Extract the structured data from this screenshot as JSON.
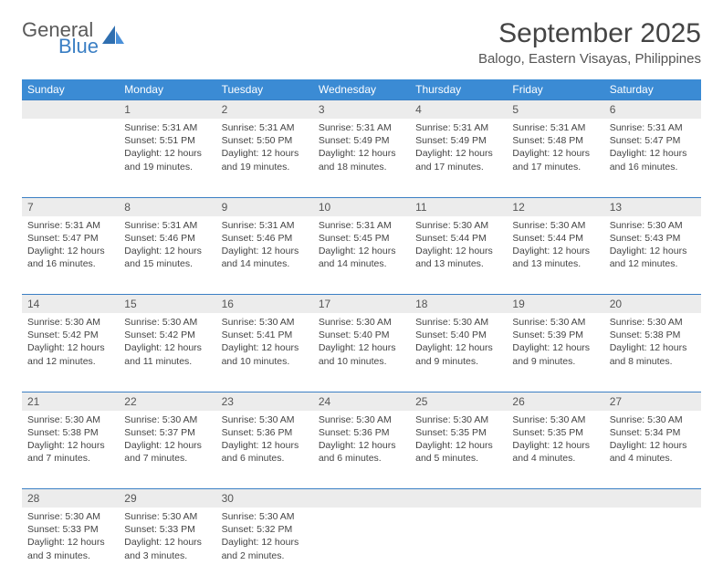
{
  "logo": {
    "general": "General",
    "blue": "Blue"
  },
  "title": "September 2025",
  "location": "Balogo, Eastern Visayas, Philippines",
  "colors": {
    "header_bg": "#3b8bd4",
    "header_text": "#ffffff",
    "daynum_bg": "#ececec",
    "separator": "#3b7fc4",
    "body_text": "#444444",
    "logo_gray": "#5a5a5a",
    "logo_blue": "#3b7fc4"
  },
  "weekdays": [
    "Sunday",
    "Monday",
    "Tuesday",
    "Wednesday",
    "Thursday",
    "Friday",
    "Saturday"
  ],
  "weeks": [
    [
      {
        "num": "",
        "sunrise": "",
        "sunset": "",
        "daylight": ""
      },
      {
        "num": "1",
        "sunrise": "Sunrise: 5:31 AM",
        "sunset": "Sunset: 5:51 PM",
        "daylight": "Daylight: 12 hours and 19 minutes."
      },
      {
        "num": "2",
        "sunrise": "Sunrise: 5:31 AM",
        "sunset": "Sunset: 5:50 PM",
        "daylight": "Daylight: 12 hours and 19 minutes."
      },
      {
        "num": "3",
        "sunrise": "Sunrise: 5:31 AM",
        "sunset": "Sunset: 5:49 PM",
        "daylight": "Daylight: 12 hours and 18 minutes."
      },
      {
        "num": "4",
        "sunrise": "Sunrise: 5:31 AM",
        "sunset": "Sunset: 5:49 PM",
        "daylight": "Daylight: 12 hours and 17 minutes."
      },
      {
        "num": "5",
        "sunrise": "Sunrise: 5:31 AM",
        "sunset": "Sunset: 5:48 PM",
        "daylight": "Daylight: 12 hours and 17 minutes."
      },
      {
        "num": "6",
        "sunrise": "Sunrise: 5:31 AM",
        "sunset": "Sunset: 5:47 PM",
        "daylight": "Daylight: 12 hours and 16 minutes."
      }
    ],
    [
      {
        "num": "7",
        "sunrise": "Sunrise: 5:31 AM",
        "sunset": "Sunset: 5:47 PM",
        "daylight": "Daylight: 12 hours and 16 minutes."
      },
      {
        "num": "8",
        "sunrise": "Sunrise: 5:31 AM",
        "sunset": "Sunset: 5:46 PM",
        "daylight": "Daylight: 12 hours and 15 minutes."
      },
      {
        "num": "9",
        "sunrise": "Sunrise: 5:31 AM",
        "sunset": "Sunset: 5:46 PM",
        "daylight": "Daylight: 12 hours and 14 minutes."
      },
      {
        "num": "10",
        "sunrise": "Sunrise: 5:31 AM",
        "sunset": "Sunset: 5:45 PM",
        "daylight": "Daylight: 12 hours and 14 minutes."
      },
      {
        "num": "11",
        "sunrise": "Sunrise: 5:30 AM",
        "sunset": "Sunset: 5:44 PM",
        "daylight": "Daylight: 12 hours and 13 minutes."
      },
      {
        "num": "12",
        "sunrise": "Sunrise: 5:30 AM",
        "sunset": "Sunset: 5:44 PM",
        "daylight": "Daylight: 12 hours and 13 minutes."
      },
      {
        "num": "13",
        "sunrise": "Sunrise: 5:30 AM",
        "sunset": "Sunset: 5:43 PM",
        "daylight": "Daylight: 12 hours and 12 minutes."
      }
    ],
    [
      {
        "num": "14",
        "sunrise": "Sunrise: 5:30 AM",
        "sunset": "Sunset: 5:42 PM",
        "daylight": "Daylight: 12 hours and 12 minutes."
      },
      {
        "num": "15",
        "sunrise": "Sunrise: 5:30 AM",
        "sunset": "Sunset: 5:42 PM",
        "daylight": "Daylight: 12 hours and 11 minutes."
      },
      {
        "num": "16",
        "sunrise": "Sunrise: 5:30 AM",
        "sunset": "Sunset: 5:41 PM",
        "daylight": "Daylight: 12 hours and 10 minutes."
      },
      {
        "num": "17",
        "sunrise": "Sunrise: 5:30 AM",
        "sunset": "Sunset: 5:40 PM",
        "daylight": "Daylight: 12 hours and 10 minutes."
      },
      {
        "num": "18",
        "sunrise": "Sunrise: 5:30 AM",
        "sunset": "Sunset: 5:40 PM",
        "daylight": "Daylight: 12 hours and 9 minutes."
      },
      {
        "num": "19",
        "sunrise": "Sunrise: 5:30 AM",
        "sunset": "Sunset: 5:39 PM",
        "daylight": "Daylight: 12 hours and 9 minutes."
      },
      {
        "num": "20",
        "sunrise": "Sunrise: 5:30 AM",
        "sunset": "Sunset: 5:38 PM",
        "daylight": "Daylight: 12 hours and 8 minutes."
      }
    ],
    [
      {
        "num": "21",
        "sunrise": "Sunrise: 5:30 AM",
        "sunset": "Sunset: 5:38 PM",
        "daylight": "Daylight: 12 hours and 7 minutes."
      },
      {
        "num": "22",
        "sunrise": "Sunrise: 5:30 AM",
        "sunset": "Sunset: 5:37 PM",
        "daylight": "Daylight: 12 hours and 7 minutes."
      },
      {
        "num": "23",
        "sunrise": "Sunrise: 5:30 AM",
        "sunset": "Sunset: 5:36 PM",
        "daylight": "Daylight: 12 hours and 6 minutes."
      },
      {
        "num": "24",
        "sunrise": "Sunrise: 5:30 AM",
        "sunset": "Sunset: 5:36 PM",
        "daylight": "Daylight: 12 hours and 6 minutes."
      },
      {
        "num": "25",
        "sunrise": "Sunrise: 5:30 AM",
        "sunset": "Sunset: 5:35 PM",
        "daylight": "Daylight: 12 hours and 5 minutes."
      },
      {
        "num": "26",
        "sunrise": "Sunrise: 5:30 AM",
        "sunset": "Sunset: 5:35 PM",
        "daylight": "Daylight: 12 hours and 4 minutes."
      },
      {
        "num": "27",
        "sunrise": "Sunrise: 5:30 AM",
        "sunset": "Sunset: 5:34 PM",
        "daylight": "Daylight: 12 hours and 4 minutes."
      }
    ],
    [
      {
        "num": "28",
        "sunrise": "Sunrise: 5:30 AM",
        "sunset": "Sunset: 5:33 PM",
        "daylight": "Daylight: 12 hours and 3 minutes."
      },
      {
        "num": "29",
        "sunrise": "Sunrise: 5:30 AM",
        "sunset": "Sunset: 5:33 PM",
        "daylight": "Daylight: 12 hours and 3 minutes."
      },
      {
        "num": "30",
        "sunrise": "Sunrise: 5:30 AM",
        "sunset": "Sunset: 5:32 PM",
        "daylight": "Daylight: 12 hours and 2 minutes."
      },
      {
        "num": "",
        "sunrise": "",
        "sunset": "",
        "daylight": ""
      },
      {
        "num": "",
        "sunrise": "",
        "sunset": "",
        "daylight": ""
      },
      {
        "num": "",
        "sunrise": "",
        "sunset": "",
        "daylight": ""
      },
      {
        "num": "",
        "sunrise": "",
        "sunset": "",
        "daylight": ""
      }
    ]
  ]
}
